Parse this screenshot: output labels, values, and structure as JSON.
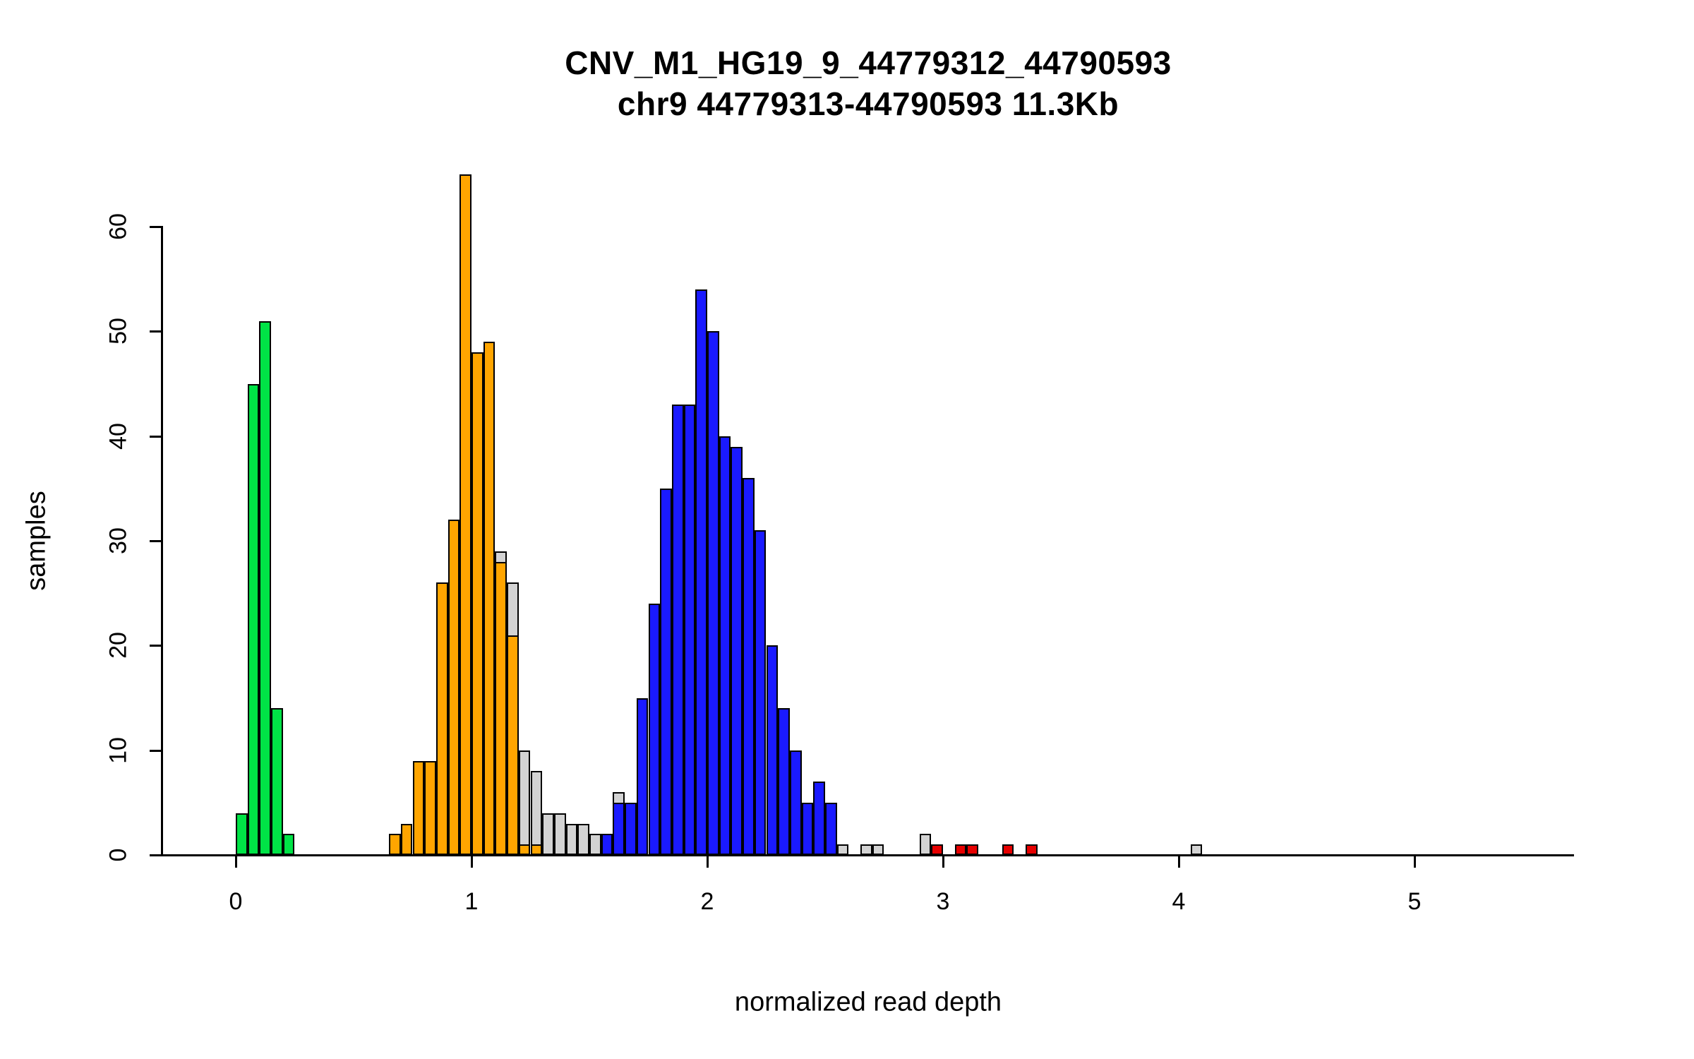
{
  "chart_data": {
    "type": "bar",
    "subtype": "histogram",
    "title": "CNV_M1_HG19_9_44779312_44790593",
    "subtitle": "chr9 44779313-44790593 11.3Kb",
    "xlabel": "normalized read depth",
    "ylabel": "samples",
    "x_ticks": [
      0,
      1,
      2,
      3,
      4,
      5
    ],
    "y_ticks": [
      0,
      10,
      20,
      30,
      40,
      50,
      60
    ],
    "xlim": [
      -0.3,
      5.7
    ],
    "ylim": [
      0,
      65
    ],
    "bin_width": 0.05,
    "grid": false,
    "legend": "none",
    "colors": {
      "green": "#00e346",
      "orange": "#ffa500",
      "blue": "#1a1aff",
      "red": "#e60000",
      "gray": "#d3d3d3",
      "axis": "#000000",
      "background": "#ffffff"
    },
    "bars": [
      {
        "x": 0.0,
        "h": 4,
        "c": "green"
      },
      {
        "x": 0.05,
        "h": 45,
        "c": "green"
      },
      {
        "x": 0.1,
        "h": 51,
        "c": "green"
      },
      {
        "x": 0.15,
        "h": 14,
        "c": "green"
      },
      {
        "x": 0.2,
        "h": 2,
        "c": "green"
      },
      {
        "x": 0.65,
        "h": 2,
        "c": "orange"
      },
      {
        "x": 0.7,
        "h": 3,
        "c": "orange"
      },
      {
        "x": 0.75,
        "h": 9,
        "c": "orange"
      },
      {
        "x": 0.8,
        "h": 9,
        "c": "orange"
      },
      {
        "x": 0.85,
        "h": 26,
        "c": "orange"
      },
      {
        "x": 0.9,
        "h": 32,
        "c": "orange"
      },
      {
        "x": 0.95,
        "h": 65,
        "c": "orange"
      },
      {
        "x": 1.0,
        "h": 48,
        "c": "orange"
      },
      {
        "x": 1.05,
        "h": 49,
        "c": "orange"
      },
      {
        "x": 1.1,
        "h": 28,
        "c": "orange",
        "bg": 29
      },
      {
        "x": 1.15,
        "h": 21,
        "c": "orange",
        "bg": 26
      },
      {
        "x": 1.2,
        "h": 1,
        "c": "orange",
        "bg": 10
      },
      {
        "x": 1.25,
        "h": 1,
        "c": "orange",
        "bg": 8
      },
      {
        "x": 1.3,
        "h": 4,
        "c": "gray"
      },
      {
        "x": 1.35,
        "h": 4,
        "c": "gray"
      },
      {
        "x": 1.4,
        "h": 3,
        "c": "gray"
      },
      {
        "x": 1.45,
        "h": 3,
        "c": "gray"
      },
      {
        "x": 1.5,
        "h": 2,
        "c": "gray"
      },
      {
        "x": 1.55,
        "h": 2,
        "c": "blue"
      },
      {
        "x": 1.6,
        "h": 5,
        "c": "blue",
        "bg": 6
      },
      {
        "x": 1.65,
        "h": 5,
        "c": "blue"
      },
      {
        "x": 1.7,
        "h": 15,
        "c": "blue"
      },
      {
        "x": 1.75,
        "h": 24,
        "c": "blue"
      },
      {
        "x": 1.8,
        "h": 35,
        "c": "blue"
      },
      {
        "x": 1.85,
        "h": 43,
        "c": "blue"
      },
      {
        "x": 1.9,
        "h": 43,
        "c": "blue"
      },
      {
        "x": 1.95,
        "h": 54,
        "c": "blue"
      },
      {
        "x": 2.0,
        "h": 50,
        "c": "blue"
      },
      {
        "x": 2.05,
        "h": 40,
        "c": "blue"
      },
      {
        "x": 2.1,
        "h": 39,
        "c": "blue"
      },
      {
        "x": 2.15,
        "h": 36,
        "c": "blue"
      },
      {
        "x": 2.2,
        "h": 31,
        "c": "blue"
      },
      {
        "x": 2.25,
        "h": 20,
        "c": "blue"
      },
      {
        "x": 2.3,
        "h": 14,
        "c": "blue"
      },
      {
        "x": 2.35,
        "h": 10,
        "c": "blue"
      },
      {
        "x": 2.4,
        "h": 5,
        "c": "blue"
      },
      {
        "x": 2.45,
        "h": 7,
        "c": "blue"
      },
      {
        "x": 2.5,
        "h": 5,
        "c": "blue"
      },
      {
        "x": 2.55,
        "h": 1,
        "c": "gray"
      },
      {
        "x": 2.65,
        "h": 1,
        "c": "gray"
      },
      {
        "x": 2.7,
        "h": 1,
        "c": "gray"
      },
      {
        "x": 2.9,
        "h": 2,
        "c": "gray"
      },
      {
        "x": 2.95,
        "h": 1,
        "c": "red"
      },
      {
        "x": 3.05,
        "h": 1,
        "c": "red"
      },
      {
        "x": 3.1,
        "h": 1,
        "c": "red"
      },
      {
        "x": 3.25,
        "h": 1,
        "c": "red"
      },
      {
        "x": 3.35,
        "h": 1,
        "c": "red"
      },
      {
        "x": 4.05,
        "h": 1,
        "c": "gray"
      }
    ]
  }
}
